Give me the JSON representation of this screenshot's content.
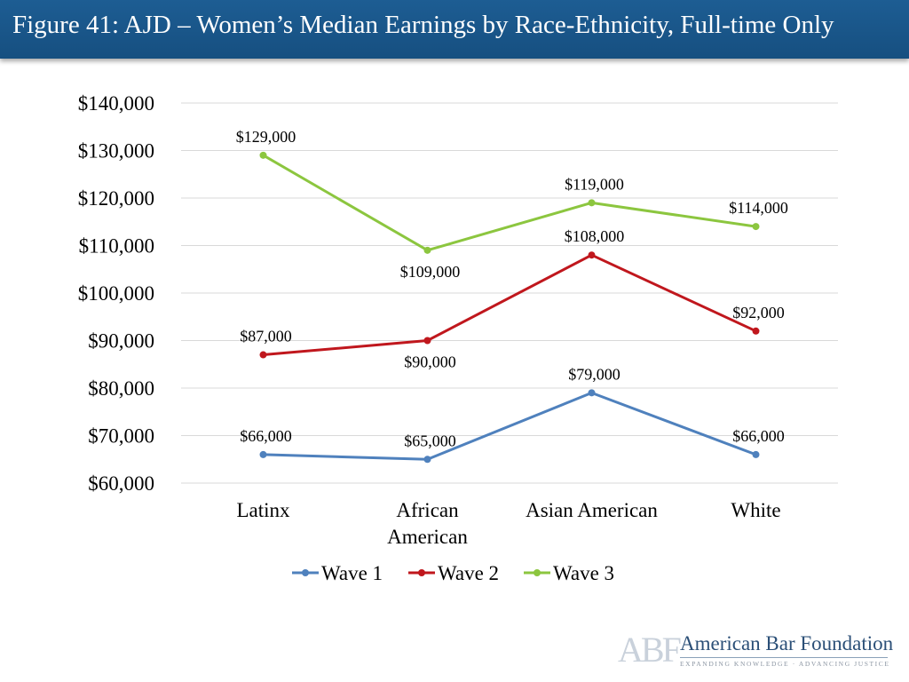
{
  "header": {
    "title": "Figure 41: AJD – Women’s Median Earnings by Race-Ethnicity, Full-time Only"
  },
  "chart_data": {
    "type": "line",
    "title": "Figure 41: AJD – Women’s Median Earnings by Race-Ethnicity, Full-time Only",
    "categories": [
      "Latinx",
      "African American",
      "Asian American",
      "White"
    ],
    "category_lines": [
      [
        "Latinx"
      ],
      [
        "African",
        "American"
      ],
      [
        "Asian American"
      ],
      [
        "White"
      ]
    ],
    "series": [
      {
        "name": "Wave 1",
        "color": "#4f81bd",
        "values": [
          66000,
          65000,
          79000,
          66000
        ],
        "labels": [
          "$66,000",
          "$65,000",
          "$79,000",
          "$66,000"
        ],
        "label_pos": [
          "above",
          "above",
          "above",
          "above"
        ]
      },
      {
        "name": "Wave 2",
        "color": "#c0171d",
        "values": [
          87000,
          90000,
          108000,
          92000
        ],
        "labels": [
          "$87,000",
          "$90,000",
          "$108,000",
          "$92,000"
        ],
        "label_pos": [
          "above",
          "below",
          "above",
          "above"
        ]
      },
      {
        "name": "Wave 3",
        "color": "#8cc63f",
        "values": [
          129000,
          109000,
          119000,
          114000
        ],
        "labels": [
          "$129,000",
          "$109,000",
          "$119,000",
          "$114,000"
        ],
        "label_pos": [
          "above",
          "below",
          "above",
          "above"
        ]
      }
    ],
    "ylim": [
      60000,
      140000
    ],
    "ytick_values": [
      60000,
      70000,
      80000,
      90000,
      100000,
      110000,
      120000,
      130000,
      140000
    ],
    "ytick_labels": [
      "$60,000",
      "$70,000",
      "$80,000",
      "$90,000",
      "$100,000",
      "$110,000",
      "$120,000",
      "$130,000",
      "$140,000"
    ],
    "grid": true,
    "legend": "bottom",
    "xlabel": "",
    "ylabel": ""
  },
  "footer": {
    "logo_initials": "ABF",
    "logo_name": "American Bar Foundation",
    "logo_tagline": "EXPANDING KNOWLEDGE · ADVANCING JUSTICE"
  }
}
